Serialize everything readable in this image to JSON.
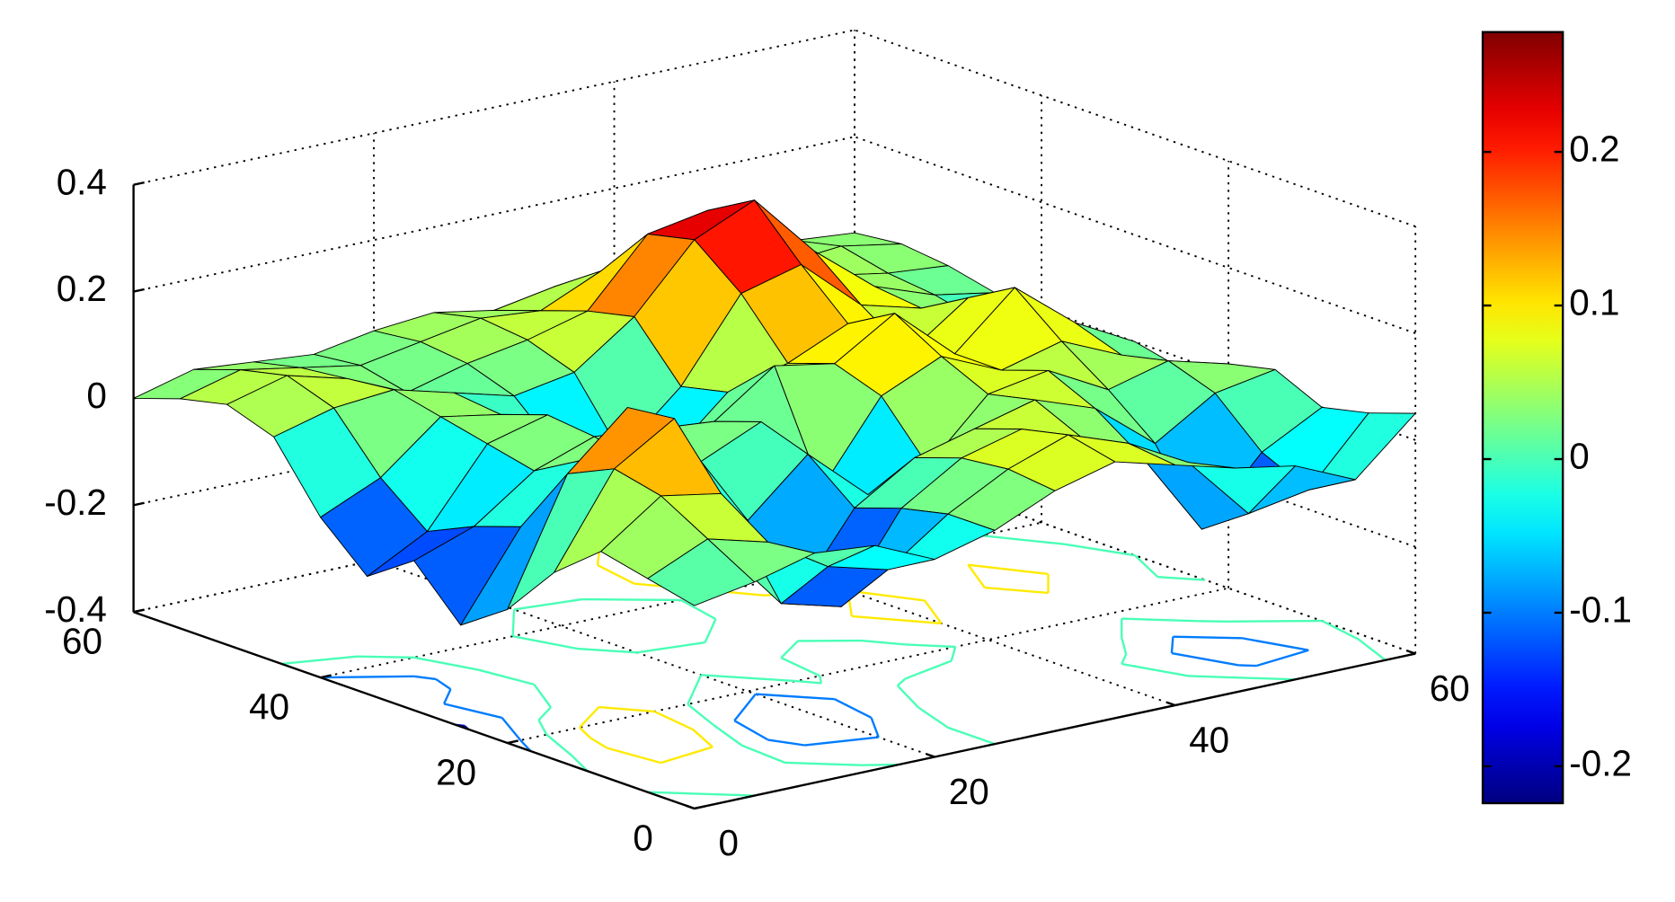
{
  "chart_data": {
    "type": "surface",
    "x": [
      0,
      5,
      10,
      15,
      20,
      25,
      30,
      35,
      40,
      45,
      50,
      55,
      60
    ],
    "y": [
      0,
      5,
      10,
      15,
      20,
      25,
      30,
      35,
      40,
      45,
      50,
      55,
      60
    ],
    "z": [
      [
        -0.02,
        0.0,
        0.03,
        0.02,
        -0.03,
        0.0,
        0.05,
        0.08,
        0.05,
        0.02,
        0.0,
        -0.05,
        0.05
      ],
      [
        0.0,
        0.05,
        0.02,
        -0.05,
        -0.08,
        0.0,
        0.06,
        0.1,
        0.06,
        0.0,
        -0.12,
        -0.1,
        0.02
      ],
      [
        0.02,
        0.1,
        0.08,
        -0.15,
        -0.18,
        -0.02,
        0.05,
        0.08,
        0.04,
        -0.02,
        -0.18,
        -0.06,
        0.0
      ],
      [
        -0.05,
        0.12,
        0.19,
        -0.1,
        -0.2,
        -0.05,
        0.02,
        0.05,
        0.08,
        0.04,
        -0.05,
        0.02,
        0.04
      ],
      [
        -0.15,
        0.08,
        0.18,
        0.0,
        -0.08,
        0.02,
        -0.08,
        -0.05,
        0.06,
        0.08,
        0.02,
        0.05,
        0.02
      ],
      [
        -0.21,
        -0.05,
        0.05,
        0.02,
        0.0,
        0.05,
        -0.1,
        0.05,
        0.1,
        0.05,
        0.08,
        0.03,
        -0.02
      ],
      [
        -0.12,
        -0.08,
        0.0,
        0.04,
        0.03,
        0.02,
        0.1,
        0.08,
        0.15,
        0.05,
        0.15,
        0.06,
        0.0
      ],
      [
        -0.18,
        -0.12,
        0.02,
        0.05,
        -0.05,
        -0.08,
        0.02,
        0.05,
        0.1,
        0.02,
        0.1,
        0.03,
        -0.02
      ],
      [
        -0.1,
        -0.05,
        0.04,
        0.02,
        -0.08,
        -0.1,
        0.0,
        0.15,
        0.18,
        0.08,
        0.05,
        0.0,
        -0.03
      ],
      [
        0.02,
        0.05,
        0.06,
        0.03,
        0.0,
        0.02,
        0.1,
        0.22,
        0.27,
        0.15,
        0.06,
        0.02,
        0.0
      ],
      [
        0.05,
        0.08,
        0.05,
        0.0,
        0.03,
        0.05,
        0.08,
        0.2,
        0.22,
        0.12,
        0.05,
        0.03,
        0.02
      ],
      [
        0.03,
        0.06,
        0.04,
        0.02,
        0.04,
        0.06,
        0.05,
        0.1,
        0.1,
        0.06,
        0.04,
        0.05,
        0.03
      ],
      [
        0.0,
        0.03,
        0.02,
        0.01,
        0.03,
        0.04,
        0.02,
        0.04,
        0.05,
        0.03,
        0.02,
        0.03,
        0.02
      ]
    ],
    "xlim": [
      0,
      60
    ],
    "ylim": [
      0,
      60
    ],
    "zlim": [
      -0.4,
      0.4
    ],
    "xticks": [
      0,
      20,
      40,
      60
    ],
    "yticks": [
      0,
      20,
      40,
      60
    ],
    "zticks": [
      -0.4,
      -0.2,
      0,
      0.2,
      0.4
    ],
    "clim": [
      -0.224,
      0.278
    ],
    "cticks": [
      -0.2,
      -0.1,
      0,
      0.1,
      0.2
    ],
    "colormap": "jet",
    "grid": true,
    "contour": true
  }
}
